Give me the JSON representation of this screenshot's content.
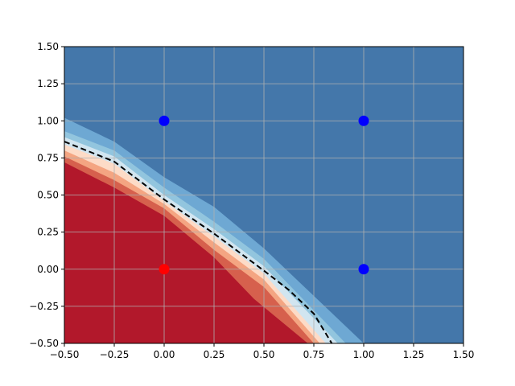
{
  "chart_data": {
    "type": "contour-scatter",
    "title": "",
    "xlabel": "",
    "ylabel": "",
    "xlim": [
      -0.5,
      1.5
    ],
    "ylim": [
      -0.5,
      1.5
    ],
    "xticks": [
      -0.5,
      -0.25,
      0.0,
      0.25,
      0.5,
      0.75,
      1.0,
      1.25,
      1.5
    ],
    "yticks": [
      -0.5,
      -0.25,
      0.0,
      0.25,
      0.5,
      0.75,
      1.0,
      1.25,
      1.5
    ],
    "xtick_labels": [
      "−0.50",
      "−0.25",
      "0.00",
      "0.25",
      "0.50",
      "0.75",
      "1.00",
      "1.25",
      "1.50"
    ],
    "ytick_labels": [
      "−0.50",
      "−0.25",
      "0.00",
      "0.25",
      "0.50",
      "0.75",
      "1.00",
      "1.25",
      "1.50"
    ],
    "grid": true,
    "points": [
      {
        "x": 0,
        "y": 0,
        "class": "red"
      },
      {
        "x": 0,
        "y": 1,
        "class": "blue"
      },
      {
        "x": 1,
        "y": 1,
        "class": "blue"
      },
      {
        "x": 1,
        "y": 0,
        "class": "blue"
      }
    ],
    "decision_boundary": {
      "style": "dashed",
      "color": "#000000",
      "points": [
        [
          -0.5,
          0.86
        ],
        [
          -0.25,
          0.725
        ],
        [
          0.0,
          0.47
        ],
        [
          0.25,
          0.24
        ],
        [
          0.5,
          -0.01
        ],
        [
          0.625,
          -0.14
        ],
        [
          0.75,
          -0.3
        ],
        [
          0.84,
          -0.5
        ]
      ]
    },
    "contour_bands": [
      {
        "color": "#b2182b",
        "points": [
          [
            -0.5,
            0.72
          ],
          [
            -0.25,
            0.55
          ],
          [
            0.0,
            0.36
          ],
          [
            0.25,
            0.08
          ],
          [
            0.45,
            -0.2
          ],
          [
            0.72,
            -0.5
          ]
        ]
      },
      {
        "color": "#d6604d",
        "points": [
          [
            -0.5,
            0.76
          ],
          [
            -0.25,
            0.6
          ],
          [
            0.0,
            0.41
          ],
          [
            0.25,
            0.13
          ],
          [
            0.5,
            -0.12
          ],
          [
            0.75,
            -0.5
          ]
        ]
      },
      {
        "color": "#f4a582",
        "points": [
          [
            -0.5,
            0.8
          ],
          [
            -0.25,
            0.65
          ],
          [
            0.0,
            0.44
          ],
          [
            0.25,
            0.18
          ],
          [
            0.5,
            -0.07
          ],
          [
            0.78,
            -0.5
          ]
        ]
      },
      {
        "color": "#fddbc7",
        "points": [
          [
            -0.5,
            0.84
          ],
          [
            -0.25,
            0.71
          ],
          [
            0.0,
            0.46
          ],
          [
            0.25,
            0.22
          ],
          [
            0.5,
            -0.03
          ],
          [
            0.81,
            -0.5
          ]
        ]
      },
      {
        "color": "#d1e5f0",
        "points": [
          [
            -0.5,
            0.89
          ],
          [
            -0.25,
            0.76
          ],
          [
            0.0,
            0.5
          ],
          [
            0.25,
            0.27
          ],
          [
            0.5,
            0.02
          ],
          [
            0.87,
            -0.5
          ]
        ]
      },
      {
        "color": "#92c5de",
        "points": [
          [
            -0.5,
            0.93
          ],
          [
            -0.25,
            0.8
          ],
          [
            0.0,
            0.55
          ],
          [
            0.25,
            0.32
          ],
          [
            0.5,
            0.07
          ],
          [
            0.91,
            -0.5
          ]
        ]
      },
      {
        "color": "#6ea8d3",
        "points": [
          [
            -0.5,
            1.02
          ],
          [
            -0.25,
            0.86
          ],
          [
            0.0,
            0.62
          ],
          [
            0.25,
            0.42
          ],
          [
            0.5,
            0.14
          ],
          [
            1.0,
            -0.5
          ]
        ]
      }
    ],
    "background_color": "#4477aa",
    "colors": {
      "red": "#ff0000",
      "blue": "#0000ff",
      "grid": "#b0b0b0"
    }
  }
}
